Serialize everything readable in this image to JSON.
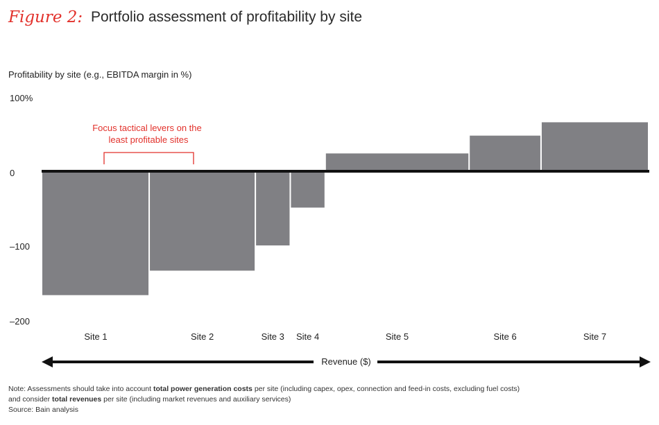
{
  "figure": {
    "label": "Figure 2:",
    "title": "Portfolio assessment of profitability by site"
  },
  "chart_data": {
    "type": "bar",
    "title": "Portfolio assessment of profitability by site",
    "ylabel": "Profitability by site (e.g., EBITDA margin in %)",
    "xlabel": "Revenue ($)",
    "ylim": [
      -200,
      100
    ],
    "yticks": [
      "100%",
      "0",
      "–100",
      "–200"
    ],
    "ytick_values": [
      100,
      0,
      -100,
      -200
    ],
    "bar_color": "#808084",
    "annotation_color": "#e2312b",
    "annotation": "Focus tactical levers on the least profitable sites",
    "annotation_lines": [
      "Focus tactical levers on the",
      "least profitable sites"
    ],
    "bars_are_variable_width": true,
    "categories": [
      "Site 1",
      "Site 2",
      "Site 3",
      "Site 4",
      "Site 5",
      "Site 6",
      "Site 7"
    ],
    "values": [
      -167,
      -134,
      -100,
      -49,
      24,
      48,
      66
    ],
    "revenue_widths": [
      153,
      152,
      50,
      50,
      206,
      103,
      154
    ]
  },
  "notes": {
    "line1_a": "Note: Assessments should take into account ",
    "line1_b": "total power generation costs",
    "line1_c": " per site (including capex, opex, connection and feed-in costs, excluding fuel costs)",
    "line2_a": "and consider ",
    "line2_b": "total revenues",
    "line2_c": " per site (including market revenues and auxiliary services)",
    "source": "Source: Bain analysis"
  }
}
